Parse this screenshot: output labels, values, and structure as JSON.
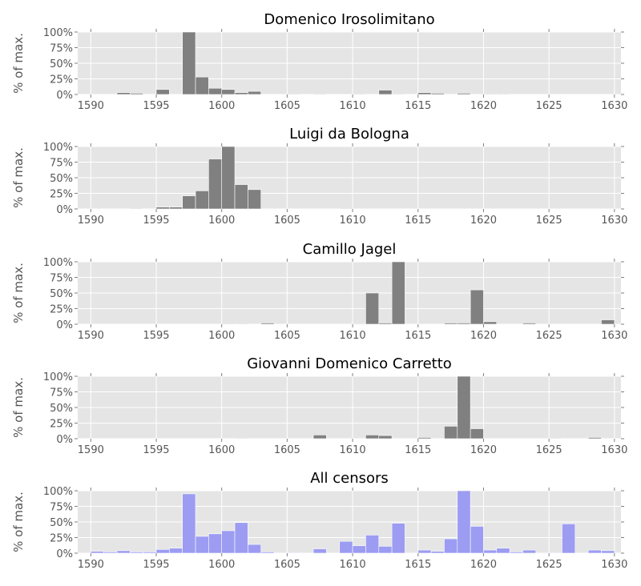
{
  "chart_data": [
    {
      "type": "bar",
      "title": "Domenico Irosolimitano",
      "ylabel": "% of max.",
      "xlim": [
        1589,
        1630.5
      ],
      "ylim": [
        0,
        100
      ],
      "xticks": [
        1590,
        1595,
        1600,
        1605,
        1610,
        1615,
        1620,
        1625,
        1630
      ],
      "yticks": [
        "0%",
        "25%",
        "50%",
        "75%",
        "100%"
      ],
      "grid": true,
      "color": "#808080",
      "x": [
        1592,
        1593,
        1595,
        1597,
        1598,
        1599,
        1600,
        1601,
        1602,
        1605,
        1607,
        1610,
        1612,
        1613,
        1615,
        1616,
        1618,
        1620,
        1621
      ],
      "values": [
        3,
        2,
        8,
        100,
        28,
        10,
        8,
        3,
        5,
        1,
        1,
        1,
        7,
        1,
        3,
        2,
        2,
        1,
        1
      ]
    },
    {
      "type": "bar",
      "title": "Luigi da Bologna",
      "ylabel": "% of max.",
      "xlim": [
        1589,
        1630.5
      ],
      "ylim": [
        0,
        100
      ],
      "xticks": [
        1590,
        1595,
        1600,
        1605,
        1610,
        1615,
        1620,
        1625,
        1630
      ],
      "yticks": [
        "0%",
        "25%",
        "50%",
        "75%",
        "100%"
      ],
      "grid": true,
      "color": "#808080",
      "x": [
        1593,
        1595,
        1596,
        1597,
        1598,
        1599,
        1600,
        1601,
        1602,
        1609
      ],
      "values": [
        1,
        3,
        3,
        21,
        29,
        80,
        100,
        39,
        31,
        1
      ]
    },
    {
      "type": "bar",
      "title": "Camillo Jagel",
      "ylabel": "% of max.",
      "xlim": [
        1589,
        1630.5
      ],
      "ylim": [
        0,
        100
      ],
      "xticks": [
        1590,
        1595,
        1600,
        1605,
        1610,
        1615,
        1620,
        1625,
        1630
      ],
      "yticks": [
        "0%",
        "25%",
        "50%",
        "75%",
        "100%"
      ],
      "grid": true,
      "color": "#808080",
      "x": [
        1600,
        1601,
        1603,
        1610,
        1611,
        1612,
        1613,
        1617,
        1618,
        1619,
        1620,
        1623,
        1629
      ],
      "values": [
        1,
        1,
        2,
        1,
        50,
        2,
        100,
        2,
        2,
        55,
        4,
        2,
        7
      ]
    },
    {
      "type": "bar",
      "title": "Giovanni Domenico Carretto",
      "ylabel": "% of max.",
      "xlim": [
        1589,
        1630.5
      ],
      "ylim": [
        0,
        100
      ],
      "xticks": [
        1590,
        1595,
        1600,
        1605,
        1610,
        1615,
        1620,
        1625,
        1630
      ],
      "yticks": [
        "0%",
        "25%",
        "50%",
        "75%",
        "100%"
      ],
      "grid": true,
      "color": "#808080",
      "x": [
        1601,
        1607,
        1611,
        1612,
        1615,
        1617,
        1618,
        1619,
        1625,
        1628
      ],
      "values": [
        1,
        6,
        6,
        5,
        2,
        20,
        100,
        16,
        1,
        2
      ]
    },
    {
      "type": "bar",
      "title": "All censors",
      "ylabel": "% of max.",
      "xlim": [
        1589,
        1630.5
      ],
      "ylim": [
        0,
        100
      ],
      "xticks": [
        1590,
        1595,
        1600,
        1605,
        1610,
        1615,
        1620,
        1625,
        1630
      ],
      "yticks": [
        "0%",
        "25%",
        "50%",
        "75%",
        "100%"
      ],
      "grid": true,
      "color": "#9c9cf2",
      "x": [
        1590,
        1591,
        1592,
        1593,
        1594,
        1595,
        1596,
        1597,
        1598,
        1599,
        1600,
        1601,
        1602,
        1603,
        1605,
        1607,
        1609,
        1610,
        1611,
        1612,
        1613,
        1615,
        1616,
        1617,
        1618,
        1619,
        1620,
        1621,
        1622,
        1623,
        1625,
        1626,
        1628,
        1629
      ],
      "values": [
        3,
        2,
        4,
        2,
        2,
        6,
        8,
        95,
        27,
        31,
        36,
        49,
        14,
        2,
        1,
        7,
        19,
        12,
        29,
        11,
        48,
        5,
        3,
        23,
        100,
        43,
        5,
        8,
        2,
        5,
        1,
        47,
        5,
        4
      ]
    }
  ]
}
